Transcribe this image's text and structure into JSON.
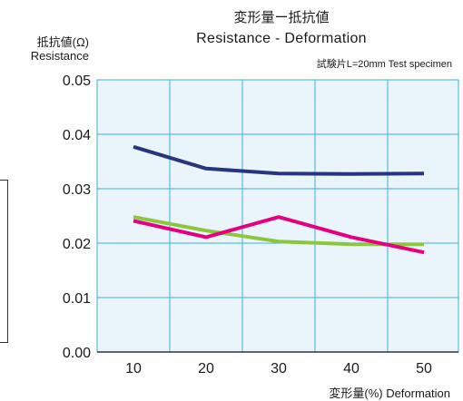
{
  "chart_data": {
    "type": "line",
    "title": "変形量ー抵抗値",
    "subtitle": "Resistance - Deformation",
    "note": "試験片L=20mm Test specimen",
    "ylabel_jp": "抵抗値(Ω)",
    "ylabel_en": "Resistance",
    "xlabel": "変形量(%) Deformation",
    "x": [
      10,
      20,
      30,
      40,
      50
    ],
    "xticks": [
      "10",
      "20",
      "30",
      "40",
      "50"
    ],
    "yticks": [
      "0.00",
      "0.01",
      "0.02",
      "0.03",
      "0.04",
      "0.05"
    ],
    "ylim": [
      0,
      0.05
    ],
    "grid": true,
    "background_color": "#e9f5fb",
    "grid_color": "#3aaedc",
    "series": [
      {
        "color": "#27357e",
        "values": [
          0.0377,
          0.0337,
          0.0328,
          0.0327,
          0.0328
        ]
      },
      {
        "color": "#8cc63f",
        "values": [
          0.0248,
          0.0223,
          0.0203,
          0.0198,
          0.0198
        ]
      },
      {
        "color": "#e4007f",
        "values": [
          0.0241,
          0.0211,
          0.0248,
          0.0211,
          0.0183
        ]
      }
    ]
  }
}
